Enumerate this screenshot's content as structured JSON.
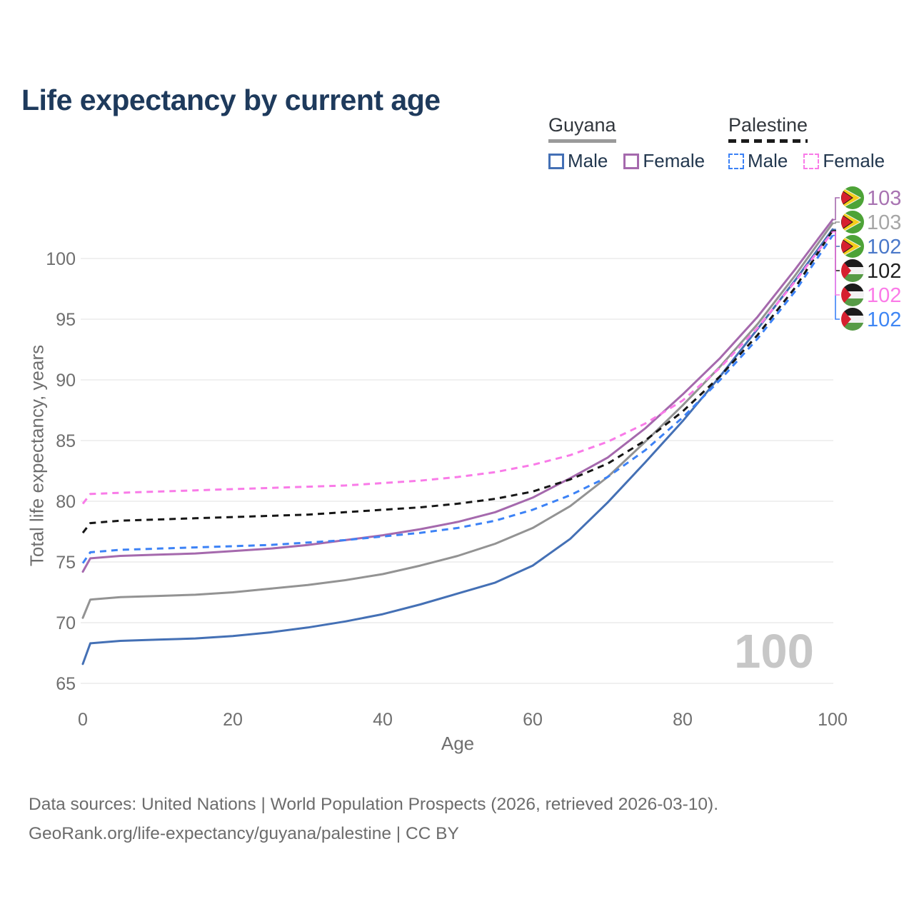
{
  "title": "Life expectancy by current age",
  "watermark": "100",
  "legend": {
    "groups": [
      {
        "country": "Guyana",
        "style": "solid",
        "items": [
          {
            "label": "Male",
            "series": "guyana_male"
          },
          {
            "label": "Female",
            "series": "guyana_female"
          }
        ]
      },
      {
        "country": "Palestine",
        "style": "dashed",
        "items": [
          {
            "label": "Male",
            "series": "palestine_male"
          },
          {
            "label": "Female",
            "series": "palestine_female"
          }
        ]
      }
    ]
  },
  "footer": {
    "line1": "Data sources: United Nations | World Population Prospects (2026, retrieved 2026-03-10).",
    "line2": "GeoRank.org/life-expectancy/guyana/palestine | CC BY"
  },
  "chart_data": {
    "type": "line",
    "title": "Life expectancy by current age",
    "xlabel": "Age",
    "ylabel": "Total life expectancy, years",
    "xlim": [
      0,
      100
    ],
    "ylim": [
      65,
      100
    ],
    "xticks": [
      0,
      20,
      40,
      60,
      80,
      100
    ],
    "yticks": [
      65,
      70,
      75,
      80,
      85,
      90,
      95,
      100
    ],
    "grid": "horizontal",
    "grid_color": "#ececec",
    "tick_color": "#6f6f6f",
    "x": [
      0,
      1,
      5,
      10,
      15,
      20,
      25,
      30,
      35,
      40,
      45,
      50,
      55,
      60,
      65,
      70,
      75,
      80,
      85,
      90,
      95,
      100
    ],
    "series": [
      {
        "id": "guyana_male",
        "name": "Guyana Male",
        "country": "Guyana",
        "flag": "guyana",
        "color": "#4470b5",
        "dash": false,
        "values": [
          66.6,
          68.3,
          68.5,
          68.6,
          68.7,
          68.9,
          69.2,
          69.6,
          70.1,
          70.7,
          71.5,
          72.4,
          73.3,
          74.7,
          76.9,
          79.9,
          83.2,
          86.6,
          90.3,
          94.2,
          98.2,
          102.4
        ],
        "end_label": "102",
        "end_label_color": "#4a78c9",
        "label_row": 3
      },
      {
        "id": "guyana_total",
        "name": "Guyana Both sexes",
        "country": "Guyana",
        "flag": "guyana",
        "color": "#939393",
        "dash": false,
        "values": [
          70.4,
          71.9,
          72.1,
          72.2,
          72.3,
          72.5,
          72.8,
          73.1,
          73.5,
          74.0,
          74.7,
          75.5,
          76.5,
          77.8,
          79.6,
          82.0,
          84.9,
          87.9,
          91.1,
          94.6,
          98.6,
          102.9
        ],
        "end_label": "103",
        "end_label_color": "#a6a6a6",
        "label_row": 2
      },
      {
        "id": "guyana_female",
        "name": "Guyana Female",
        "country": "Guyana",
        "flag": "guyana",
        "color": "#a569ad",
        "dash": false,
        "values": [
          74.2,
          75.3,
          75.5,
          75.6,
          75.7,
          75.9,
          76.1,
          76.4,
          76.8,
          77.2,
          77.7,
          78.3,
          79.1,
          80.3,
          81.9,
          83.6,
          86.0,
          88.8,
          91.8,
          95.2,
          99.1,
          103.2
        ],
        "end_label": "103",
        "end_label_color": "#a873b2",
        "label_row": 1
      },
      {
        "id": "palestine_male",
        "name": "Palestine Male",
        "country": "Palestine",
        "flag": "palestine",
        "color": "#3c82f6",
        "dash": true,
        "values": [
          74.9,
          75.8,
          76.0,
          76.1,
          76.2,
          76.3,
          76.4,
          76.6,
          76.8,
          77.1,
          77.4,
          77.8,
          78.4,
          79.3,
          80.5,
          82.0,
          84.2,
          86.9,
          90.0,
          93.4,
          97.3,
          101.9
        ],
        "end_label": "102",
        "end_label_color": "#3f86f4",
        "label_row": 6
      },
      {
        "id": "palestine_total",
        "name": "Palestine Both sexes",
        "country": "Palestine",
        "flag": "palestine",
        "color": "#161616",
        "dash": true,
        "values": [
          77.4,
          78.2,
          78.4,
          78.5,
          78.6,
          78.7,
          78.8,
          78.9,
          79.1,
          79.3,
          79.5,
          79.8,
          80.2,
          80.8,
          81.8,
          83.1,
          85.0,
          87.4,
          90.3,
          93.7,
          97.6,
          102.3
        ],
        "end_label": "102",
        "end_label_color": "#1f1f1f",
        "label_row": 4
      },
      {
        "id": "palestine_female",
        "name": "Palestine Female",
        "country": "Palestine",
        "flag": "palestine",
        "color": "#f97be8",
        "dash": true,
        "values": [
          79.8,
          80.6,
          80.7,
          80.8,
          80.9,
          81.0,
          81.1,
          81.2,
          81.3,
          81.5,
          81.7,
          82.0,
          82.4,
          83.0,
          83.8,
          84.9,
          86.4,
          88.3,
          91.0,
          94.3,
          98.1,
          102.2
        ],
        "end_label": "102",
        "end_label_color": "#fb7be8",
        "label_row": 5
      }
    ]
  }
}
